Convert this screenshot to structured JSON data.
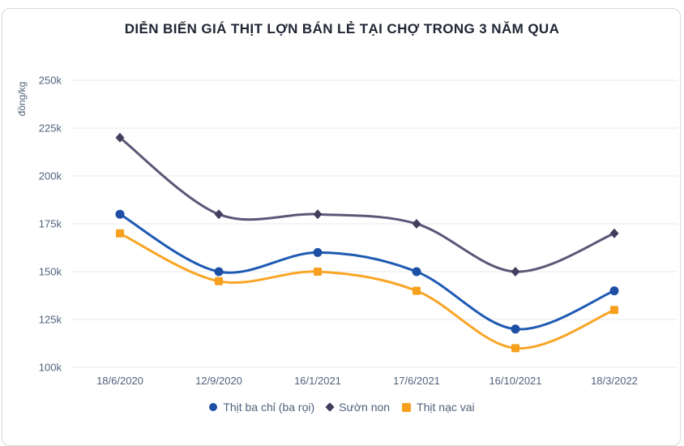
{
  "card": {
    "type": "chart-widget"
  },
  "chart_data": {
    "type": "line",
    "title": "DIỄN BIẾN GIÁ THỊT LỢN BÁN LẺ TẠI CHỢ TRONG 3 NĂM QUA",
    "xlabel": "",
    "ylabel": "đồng/kg",
    "x": [
      "18/6/2020",
      "12/9/2020",
      "16/1/2021",
      "17/6/2021",
      "16/10/2021",
      "18/3/2022"
    ],
    "y_ticks": [
      "100k",
      "125k",
      "150k",
      "175k",
      "200k",
      "225k",
      "250k"
    ],
    "ylim": [
      100000,
      250000
    ],
    "grid": true,
    "legend_position": "bottom",
    "series": [
      {
        "name": "Thịt ba chỉ (ba rọi)",
        "marker": "circle",
        "color": "#1e5ab3",
        "marker_color": "#1d50a5",
        "values": [
          180000,
          150000,
          160000,
          150000,
          120000,
          140000
        ]
      },
      {
        "name": "Sườn non",
        "marker": "diamond",
        "color": "#5e5677",
        "marker_color": "#443e5e",
        "values": [
          220000,
          180000,
          180000,
          175000,
          150000,
          170000
        ]
      },
      {
        "name": "Thịt nạc vai",
        "marker": "square",
        "color": "#f9a525",
        "marker_color": "#f6a01e",
        "values": [
          170000,
          145000,
          150000,
          140000,
          110000,
          130000
        ]
      }
    ]
  },
  "colors": {
    "grid": "#e8e8e8",
    "tick_text": "#51627d",
    "title_text": "#1f2433",
    "card_border": "#dadada"
  }
}
